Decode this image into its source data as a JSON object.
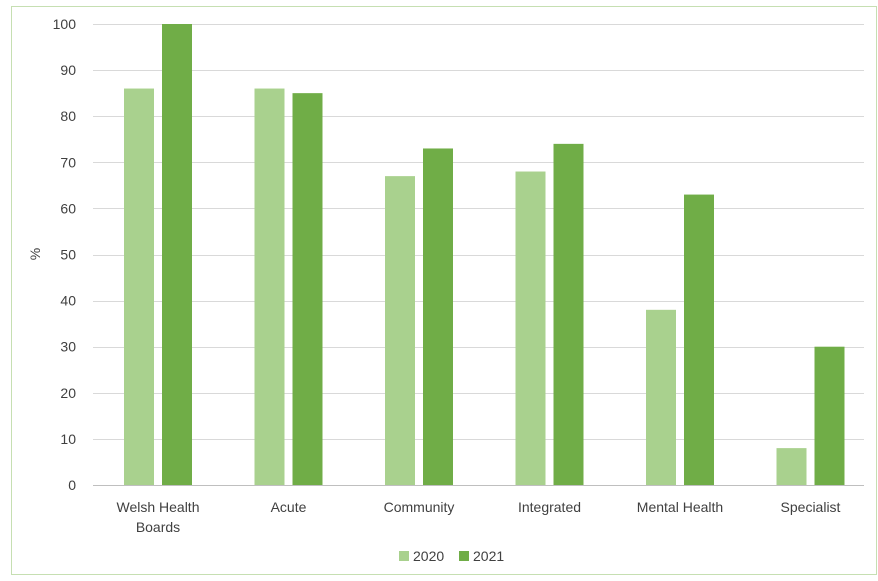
{
  "chart_data": {
    "type": "bar",
    "title": "",
    "xlabel": "",
    "ylabel": "%",
    "ylim": [
      0,
      100
    ],
    "yticks": [
      0,
      10,
      20,
      30,
      40,
      50,
      60,
      70,
      80,
      90,
      100
    ],
    "grid": true,
    "legend_position": "bottom-center",
    "categories": [
      "Welsh Health Boards",
      "Acute",
      "Community",
      "Integrated",
      "Mental Health",
      "Specialist"
    ],
    "category_lines": [
      [
        "Welsh Health",
        "Boards"
      ],
      [
        "Acute"
      ],
      [
        "Community"
      ],
      [
        "Integrated"
      ],
      [
        "Mental Health"
      ],
      [
        "Specialist"
      ]
    ],
    "series": [
      {
        "name": "2020",
        "color": "#a9d18e",
        "values": [
          86,
          86,
          67,
          68,
          38,
          8
        ]
      },
      {
        "name": "2021",
        "color": "#70ad47",
        "values": [
          100,
          85,
          73,
          74,
          63,
          30
        ]
      }
    ]
  }
}
